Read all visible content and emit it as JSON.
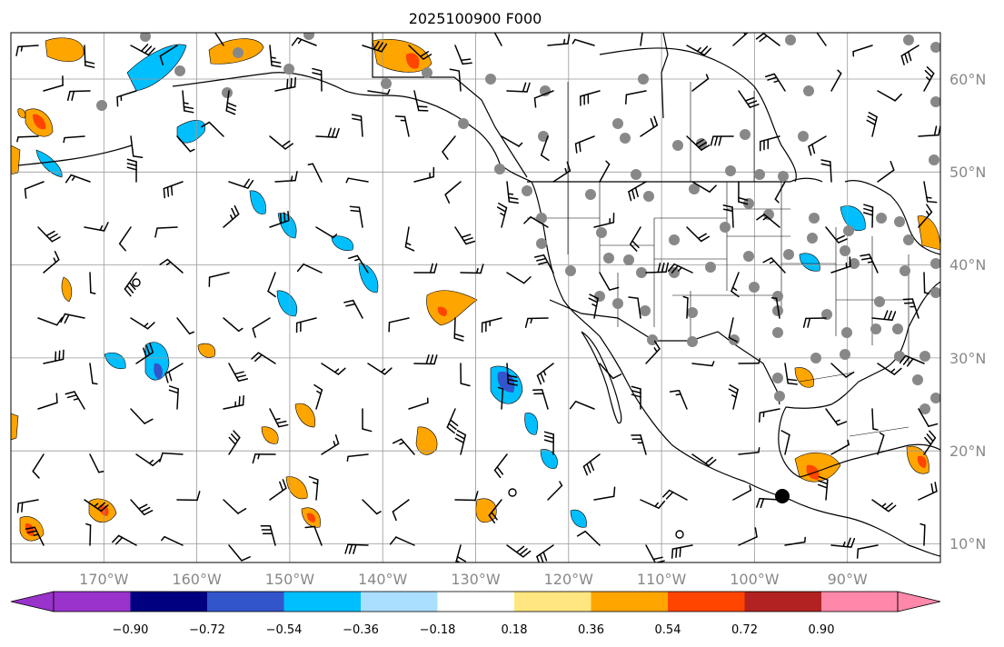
{
  "title": "2025100900 F000",
  "map": {
    "lon_range": [
      -180,
      -80
    ],
    "lat_range": [
      8,
      65
    ],
    "grid": true,
    "lon_ticks": [
      "170°W",
      "160°W",
      "150°W",
      "140°W",
      "130°W",
      "120°W",
      "110°W",
      "100°W",
      "90°W"
    ],
    "lat_ticks": [
      "10°N",
      "20°N",
      "30°N",
      "40°N",
      "50°N",
      "60°N"
    ],
    "station_marker": {
      "lon": -96.7,
      "lat": 15.2
    }
  },
  "colorbar": {
    "tick_labels": [
      "−0.90",
      "−0.72",
      "−0.54",
      "−0.36",
      "−0.18",
      "0.18",
      "0.36",
      "0.54",
      "0.72",
      "0.90"
    ],
    "colors": [
      "#9933cc",
      "#000080",
      "#3355cc",
      "#00bfff",
      "#aadfff",
      "#ffffff",
      "#ffe680",
      "#ffa500",
      "#ff4500",
      "#b22222",
      "#ff88aa"
    ],
    "extend": "both"
  }
}
